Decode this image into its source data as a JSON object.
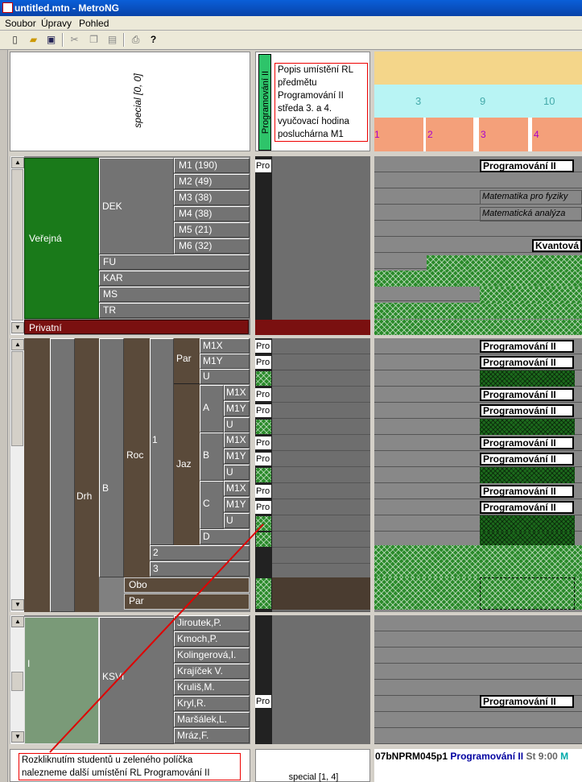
{
  "window": {
    "title": "untitled.mtn - MetroNG"
  },
  "menu": [
    "Soubor",
    "Úpravy",
    "Pohled"
  ],
  "toolbar": {
    "icons": [
      "new-icon",
      "open-icon",
      "save-icon",
      "cut-icon",
      "copy-icon",
      "paste-icon",
      "print-icon",
      "help-icon"
    ]
  },
  "top": {
    "special_label": "special [0, 0]",
    "vertical_course": "Programování II",
    "annotation": "Popis umístění RL předmětu Programování II středa 3. a 4. vyučovací hodina posluchárna M1",
    "hours": [
      "3",
      "9",
      "10"
    ],
    "periods": [
      "1",
      "2",
      "3",
      "4"
    ]
  },
  "group1": {
    "verejna": "Veřejná",
    "dek": "DEK",
    "rooms": [
      "M1 (190)",
      "M2 (49)",
      "M3 (38)",
      "M4 (38)",
      "M5 (21)",
      "M6 (32)"
    ],
    "depts": [
      "FU",
      "KAR",
      "MS",
      "TR"
    ],
    "privatni": "Privatní",
    "pro": "Pro",
    "events": {
      "prog": "Programování II",
      "mat1": "Matematika pro fyziky",
      "mat2": "Matematická analýza",
      "kvant": "Kvantová"
    }
  },
  "group2": {
    "drh": "Drh",
    "b": "B",
    "roc": "Roc",
    "one": "1",
    "par": "Par",
    "jaz": "Jaz",
    "par_rows": [
      "M1X",
      "M1Y",
      "U"
    ],
    "a": "A",
    "b2": "B",
    "c": "C",
    "sub": [
      "M1X",
      "M1Y",
      "U"
    ],
    "d": "D",
    "two": "2",
    "three": "3",
    "obo": "Obo",
    "par2": "Par",
    "pro": "Pro",
    "prog": "Programování II"
  },
  "group3": {
    "i": "I",
    "ksvi": "KSVI",
    "teachers": [
      "Jiroutek,P.",
      "Kmoch,P.",
      "Kolingerová,I.",
      "Krajíček V.",
      "Kruliš,M.",
      "Kryl,R.",
      "Maršálek,L.",
      "Mráz,F."
    ],
    "pro": "Pro",
    "prog": "Programování II"
  },
  "bottom": {
    "note": "Rozkliknutím studentů u zeleného políčka nalezneme další umístění RL Programování II",
    "special_label": "special [1, 4]",
    "status_code": "07bNPRM045p1",
    "status_course": "Programování II",
    "status_time": "St 9:00",
    "status_extra": "M"
  },
  "colors": {
    "dark_green": "#1a7a1a",
    "dark_red": "#7a1010",
    "brown": "#5a4a3a",
    "orange": "#f4a07a",
    "cyan": "#b8f4f4",
    "yellow": "#f4d68a",
    "sage": "#7a9a78",
    "annotation_red": "#e00000"
  }
}
